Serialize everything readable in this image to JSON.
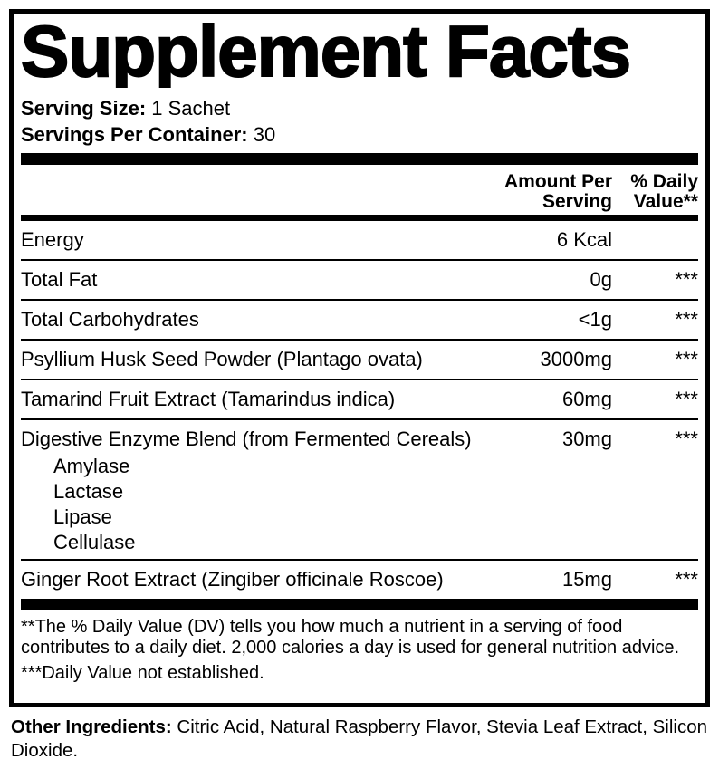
{
  "panel": {
    "title": "Supplement Facts",
    "serving_size": {
      "label": "Serving Size:",
      "value": "1 Sachet"
    },
    "servings_per_container": {
      "label": "Servings Per Container:",
      "value": "30"
    },
    "columns": {
      "amount_line1": "Amount Per",
      "amount_line2": "Serving",
      "dv_line1": "% Daily",
      "dv_line2": "Value**"
    },
    "rows": [
      {
        "name": "Energy",
        "amount": "6 Kcal",
        "dv": ""
      },
      {
        "name": "Total Fat",
        "amount": "0g",
        "dv": "***"
      },
      {
        "name": "Total Carbohydrates",
        "amount": "<1g",
        "dv": "***"
      },
      {
        "name": "Psyllium Husk Seed Powder (Plantago ovata)",
        "amount": "3000mg",
        "dv": "***"
      },
      {
        "name": "Tamarind Fruit Extract (Tamarindus indica)",
        "amount": "60mg",
        "dv": "***"
      },
      {
        "name": "Digestive Enzyme Blend (from Fermented Cereals)",
        "amount": "30mg",
        "dv": "***",
        "sub_items": [
          "Amylase",
          "Lactase",
          "Lipase",
          "Cellulase"
        ]
      },
      {
        "name": "Ginger Root Extract (Zingiber officinale Roscoe)",
        "amount": "15mg",
        "dv": "***"
      }
    ],
    "footnotes": {
      "daily_value_note": "**The % Daily Value (DV) tells you how much a nutrient in a serving of food contributes to a daily diet. 2,000 calories a day is used for general nutrition advice.",
      "not_established_note": "***Daily Value not established."
    },
    "other_ingredients": {
      "label": "Other Ingredients:",
      "value": "Citric Acid, Natural Raspberry Flavor, Stevia Leaf Extract, Silicon Dioxide."
    },
    "colors": {
      "ink": "#000000",
      "background": "#ffffff"
    }
  }
}
